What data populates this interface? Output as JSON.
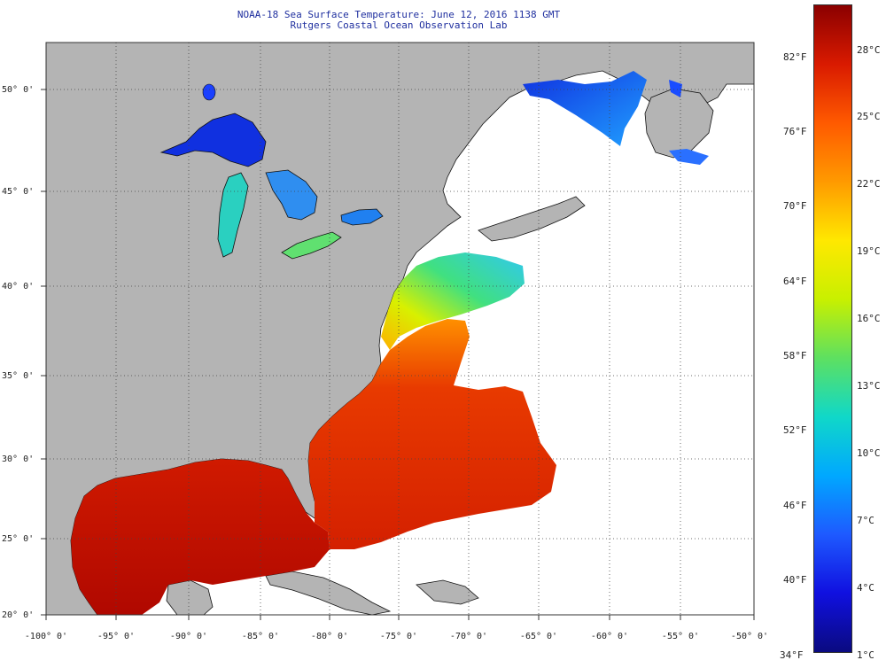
{
  "title": {
    "line1": "NOAA-18 Sea Surface Temperature:  June 12, 2016 1138 GMT",
    "line2": "Rutgers Coastal Ocean Observation Lab"
  },
  "map": {
    "lon_ticks": [
      "-100° 0'",
      "-95° 0'",
      "-90° 0'",
      "-85° 0'",
      "-80° 0'",
      "-75° 0'",
      "-70° 0'",
      "-65° 0'",
      "-60° 0'",
      "-55° 0'",
      "-50° 0'"
    ],
    "lat_ticks": [
      "50° 0'",
      "45° 0'",
      "40° 0'",
      "35° 0'",
      "30° 0'",
      "25° 0'",
      "20° 0'"
    ],
    "land_color": "#b4b4b4",
    "no_data_color": "#ffffff"
  },
  "colorbar": {
    "fahrenheit": [
      "82°F",
      "76°F",
      "70°F",
      "64°F",
      "58°F",
      "52°F",
      "46°F",
      "40°F",
      "34°F"
    ],
    "celsius": [
      "28°C",
      "25°C",
      "22°C",
      "19°C",
      "16°C",
      "13°C",
      "10°C",
      "7°C",
      "4°C",
      "1°C"
    ],
    "colors": [
      "#8b0000",
      "#d91a00",
      "#ff5a00",
      "#ff9a00",
      "#ffe800",
      "#c8f000",
      "#5ee060",
      "#10d8c8",
      "#00a8ff",
      "#1e5aff",
      "#1010e0",
      "#0a0a80"
    ]
  }
}
